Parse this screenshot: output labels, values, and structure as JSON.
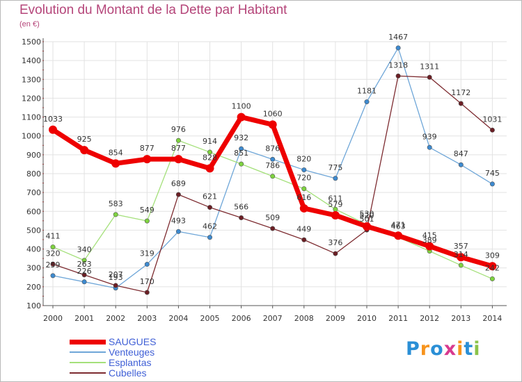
{
  "title": "Evolution du Montant de la Dette par Habitant",
  "subtitle": "(en €)",
  "logo": {
    "text": "Proxiti",
    "colors": [
      "#2a8fd6",
      "#f7941d",
      "#2a8fd6",
      "#d83a8f",
      "#f7941d",
      "#2a8fd6",
      "#8bc34a"
    ]
  },
  "chart_data": {
    "type": "line",
    "x": [
      2000,
      2001,
      2002,
      2003,
      2004,
      2005,
      2006,
      2007,
      2008,
      2009,
      2010,
      2011,
      2012,
      2013,
      2014
    ],
    "yticks": [
      100,
      200,
      300,
      400,
      500,
      600,
      700,
      800,
      900,
      1000,
      1100,
      1200,
      1300,
      1400,
      1500
    ],
    "ylim": [
      100,
      1500
    ],
    "grid": true,
    "legend_position": "bottom-left",
    "series": [
      {
        "name": "Venteuges",
        "color": "#6ea6d8",
        "marker": "#3d8ad0",
        "width": 1.3,
        "values": [
          259,
          226,
          193,
          319,
          493,
          462,
          932,
          876,
          820,
          775,
          1181,
          1467,
          939,
          847,
          745
        ],
        "labels": [
          "259",
          "226",
          "193",
          "319",
          "493",
          "462",
          "932",
          "876",
          "820",
          "775",
          "1181",
          "1467",
          "939",
          "847",
          "745"
        ]
      },
      {
        "name": "Esplantas",
        "color": "#a4e07a",
        "marker": "#7ed33f",
        "width": 1.3,
        "values": [
          411,
          340,
          583,
          549,
          976,
          914,
          851,
          786,
          720,
          611,
          530,
          463,
          389,
          314,
          242
        ],
        "labels": [
          "411",
          "340",
          "583",
          "549",
          "976",
          "914",
          "851",
          "786",
          "720",
          "611",
          "530",
          "463",
          "389",
          "314",
          "242"
        ]
      },
      {
        "name": "Cubelles",
        "color": "#7d2b30",
        "marker": "#6b1e24",
        "width": 1.3,
        "values": [
          320,
          263,
          207,
          170,
          689,
          621,
          566,
          509,
          449,
          376,
          501,
          1318,
          1311,
          1172,
          1031
        ],
        "labels": [
          "320",
          "263",
          "207",
          "170",
          "689",
          "621",
          "566",
          "509",
          "449",
          "376",
          "501",
          "1318",
          "1311",
          "1172",
          "1031"
        ]
      },
      {
        "name": "SAUGUES",
        "color": "#ee0000",
        "marker": "#ee0000",
        "width": 7,
        "values": [
          1033,
          925,
          854,
          877,
          877,
          828,
          1100,
          1060,
          616,
          579,
          520,
          471,
          415,
          357,
          309
        ],
        "labels": [
          "1033",
          "925",
          "854",
          "877",
          "877",
          "828",
          "1100",
          "1060",
          "616",
          "579",
          "520",
          "471",
          "415",
          "357",
          "309"
        ]
      }
    ],
    "legend": [
      {
        "name": "SAUGUES",
        "color": "#ee0000",
        "width": 7
      },
      {
        "name": "Venteuges",
        "color": "#6ea6d8",
        "width": 1.5
      },
      {
        "name": "Esplantas",
        "color": "#a4e07a",
        "width": 1.5
      },
      {
        "name": "Cubelles",
        "color": "#7d2b30",
        "width": 1.5
      }
    ]
  }
}
